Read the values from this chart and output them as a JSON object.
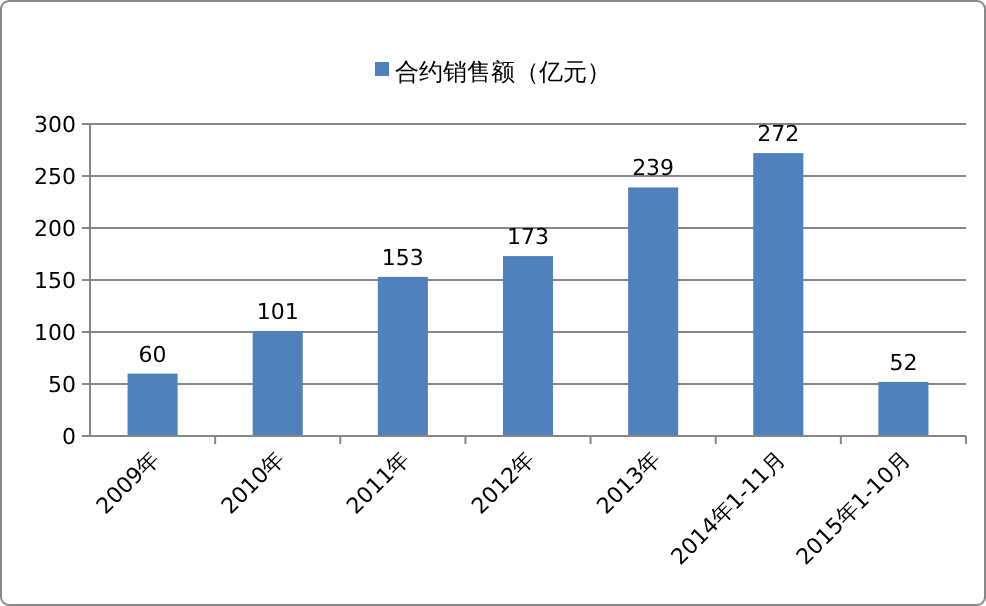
{
  "chart_data": {
    "type": "bar",
    "categories": [
      "2009年",
      "2010年",
      "2011年",
      "2012年",
      "2013年",
      "2014年1-11月",
      "2015年1-10月"
    ],
    "series": [
      {
        "name": "合约销售额（亿元）",
        "color": "#4f81bd",
        "values": [
          60,
          101,
          153,
          173,
          239,
          272,
          52
        ]
      }
    ],
    "ylim": [
      0,
      300
    ],
    "yticks": [
      0,
      50,
      100,
      150,
      200,
      250,
      300
    ],
    "grid": "y",
    "legend": "top",
    "data_labels": true
  }
}
